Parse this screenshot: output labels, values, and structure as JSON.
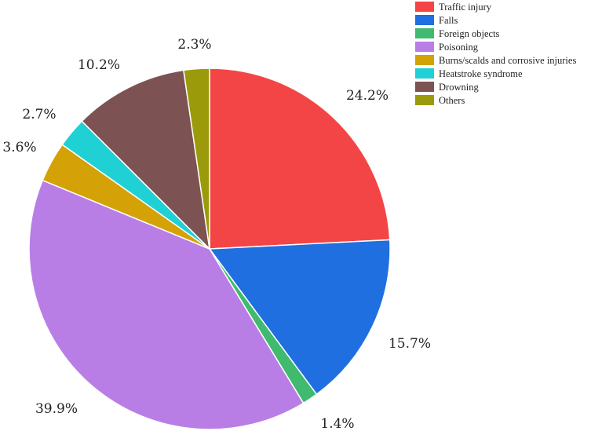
{
  "chart_data": {
    "type": "pie",
    "legend_position": "top-right",
    "slices": [
      {
        "label": "Traffic injury",
        "value": 24.2,
        "display": "24.2%",
        "color": "#f34545"
      },
      {
        "label": "Falls",
        "value": 15.7,
        "display": "15.7%",
        "color": "#1f6fe0"
      },
      {
        "label": "Foreign objects",
        "value": 1.4,
        "display": "1.4%",
        "color": "#3fba6e"
      },
      {
        "label": "Poisoning",
        "value": 39.9,
        "display": "39.9%",
        "color": "#b97ee6"
      },
      {
        "label": "Burns/scalds and corrosive injuries",
        "value": 3.6,
        "display": "3.6%",
        "color": "#d4a106"
      },
      {
        "label": "Heatstroke syndrome",
        "value": 2.7,
        "display": "2.7%",
        "color": "#1fd0d4"
      },
      {
        "label": "Drowning",
        "value": 10.2,
        "display": "10.2%",
        "color": "#7c5352"
      },
      {
        "label": "Others",
        "value": 2.3,
        "display": "2.3%",
        "color": "#9b9a0a"
      }
    ]
  }
}
